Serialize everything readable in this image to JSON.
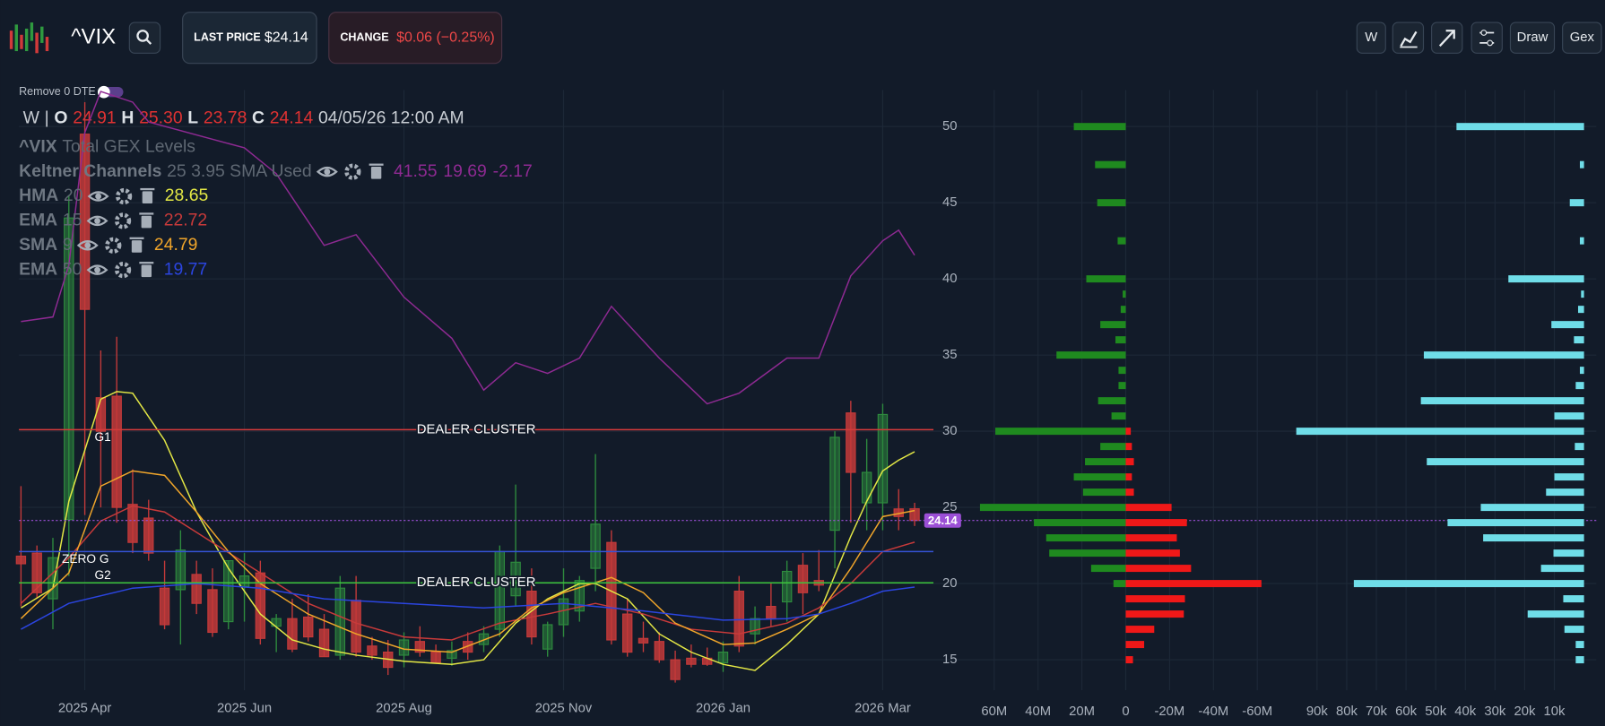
{
  "header": {
    "symbol": "^VIX",
    "last_price_label": "LAST PRICE",
    "last_price": "$24.14",
    "change_label": "CHANGE",
    "change": "$0.06 (−0.25%)",
    "buttons": [
      "W",
      "Draw",
      "Gex"
    ],
    "toggle_label": "Remove 0 DTE"
  },
  "ohlc": {
    "period": "W",
    "separator": "|",
    "open_label": "O",
    "open": "24.91",
    "high_label": "H",
    "high": "25.30",
    "low_label": "L",
    "low": "23.78",
    "close_label": "C",
    "close": "24.14",
    "datetime": "04/05/26 12:00 AM"
  },
  "indicators": [
    {
      "name": "^VIX",
      "label": "Total GEX Levels"
    },
    {
      "name": "Keltner Channels",
      "params": "25 3.95 SMA Used",
      "values": [
        41.55,
        19.69,
        -2.17
      ],
      "color": "#8e2a92"
    },
    {
      "name": "HMA",
      "params": "20",
      "values": [
        28.65
      ],
      "color": "#e4e845"
    },
    {
      "name": "EMA",
      "params": "15",
      "values": [
        22.72
      ],
      "color": "#c83a3a"
    },
    {
      "name": "SMA",
      "params": "9",
      "values": [
        24.79
      ],
      "color": "#f0a52a"
    },
    {
      "name": "EMA",
      "params": "50",
      "values": [
        19.77
      ],
      "color": "#2b45e0"
    }
  ],
  "chart_data": [
    {
      "type": "candlestick",
      "categories": [
        null,
        null,
        null,
        null,
        "2025 Apr",
        null,
        null,
        null,
        null,
        null,
        null,
        null,
        null,
        null,
        "2025 Jun",
        null,
        null,
        null,
        null,
        null,
        null,
        null,
        null,
        null,
        "2025 Aug",
        null,
        null,
        null,
        null,
        null,
        null,
        null,
        null,
        null,
        "2025 Nov",
        null,
        null,
        null,
        null,
        null,
        null,
        null,
        null,
        null,
        "2026 Jan",
        null,
        null,
        null,
        null,
        null,
        null,
        null,
        null,
        null,
        "2026 Mar",
        null,
        null
      ],
      "open": [
        21.8,
        22.0,
        19.0,
        24.2,
        49.5,
        32.2,
        32.3,
        25.2,
        24.3,
        19.7,
        19.6,
        20.6,
        19.6,
        17.5,
        19.8,
        20.7,
        17.2,
        17.7,
        17.8,
        17.0,
        15.3,
        18.9,
        15.9,
        15.5,
        15.3,
        16.2,
        15.5,
        15.1,
        16.2,
        16.0,
        17.0,
        19.2,
        19.5,
        15.7,
        17.3,
        18.2,
        21.0,
        22.7,
        18.0,
        16.4,
        16.2,
        15.0,
        15.1,
        15.1,
        14.8,
        19.5,
        16.7,
        18.5,
        18.8,
        21.2,
        20.2,
        23.5,
        31.2,
        25.3,
        25.3,
        24.9,
        24.91
      ],
      "high": [
        26.4,
        22.5,
        23.0,
        45.5,
        51.6,
        35.3,
        36.2,
        27.5,
        25.5,
        21.5,
        23.5,
        21.5,
        21.0,
        21.5,
        22.0,
        21.5,
        18.0,
        19.0,
        19.3,
        18.0,
        20.5,
        20.5,
        16.5,
        16.3,
        16.8,
        17.2,
        16.0,
        16.2,
        16.8,
        17.2,
        22.5,
        26.5,
        21.0,
        17.5,
        21.0,
        20.5,
        28.5,
        23.5,
        19.0,
        17.5,
        16.8,
        15.6,
        16.0,
        15.8,
        16.2,
        20.5,
        18.5,
        20.0,
        21.5,
        22.0,
        22.2,
        30.0,
        32.0,
        29.5,
        31.8,
        26.2,
        25.3
      ],
      "low": [
        18.5,
        19.0,
        17.0,
        20.5,
        24.5,
        25.0,
        24.0,
        22.0,
        21.5,
        17.0,
        16.0,
        18.0,
        16.5,
        17.0,
        17.5,
        16.0,
        15.5,
        15.5,
        16.2,
        15.2,
        15.0,
        15.2,
        15.0,
        14.0,
        14.5,
        15.2,
        14.8,
        14.6,
        15.0,
        15.5,
        16.5,
        18.5,
        16.0,
        15.2,
        16.5,
        17.5,
        19.5,
        16.0,
        15.2,
        15.5,
        14.8,
        13.5,
        14.5,
        14.6,
        14.2,
        15.5,
        16.0,
        17.2,
        17.5,
        18.0,
        19.5,
        21.0,
        24.0,
        23.5,
        23.5,
        23.5,
        23.78
      ],
      "close": [
        21.3,
        19.4,
        21.7,
        44.0,
        38.0,
        30.0,
        25.0,
        22.7,
        22.0,
        17.3,
        22.2,
        18.7,
        16.8,
        21.5,
        20.5,
        16.4,
        17.7,
        15.7,
        16.5,
        15.2,
        19.7,
        15.5,
        15.3,
        14.5,
        16.3,
        15.5,
        14.8,
        15.6,
        15.5,
        16.7,
        22.1,
        21.4,
        16.5,
        17.3,
        19.0,
        20.2,
        23.9,
        16.3,
        15.5,
        16.1,
        15.0,
        13.7,
        14.7,
        14.7,
        15.5,
        15.9,
        17.7,
        17.7,
        20.8,
        19.4,
        19.9,
        29.6,
        27.3,
        27.3,
        31.1,
        24.4,
        24.14
      ],
      "up_color": "#2e8b3e",
      "down_color": "#c43a3a",
      "ylim": [
        13,
        52.4
      ],
      "yticks": [
        15,
        20,
        25,
        30,
        35,
        40,
        45,
        50
      ],
      "grid": true,
      "lines": [
        {
          "color": "#8e2a92",
          "x": [
            0,
            2,
            3,
            4,
            5,
            7,
            8,
            14,
            16,
            19,
            21,
            24,
            27,
            29,
            31,
            33,
            35,
            37,
            40,
            43,
            45,
            48,
            50,
            52,
            54,
            55,
            56
          ],
          "values": [
            37.2,
            37.5,
            40.9,
            49.6,
            52.3,
            51.6,
            50.3,
            48.6,
            46.9,
            42.2,
            42.9,
            38.8,
            36.1,
            32.7,
            34.5,
            33.8,
            34.8,
            38.2,
            34.8,
            31.8,
            32.5,
            34.8,
            34.8,
            40.2,
            42.5,
            43.2,
            41.55
          ]
        },
        {
          "color": "#e4e845",
          "x": [
            0,
            2,
            3,
            5,
            6,
            7,
            9,
            11,
            13,
            15,
            17,
            19,
            21,
            24,
            27,
            29,
            31,
            33,
            35,
            36,
            38,
            40,
            42,
            44,
            46,
            48,
            50,
            52,
            53,
            54,
            55,
            56
          ],
          "values": [
            18.4,
            19.7,
            25.4,
            32.1,
            32.6,
            32.5,
            29.4,
            24.7,
            21.0,
            18.0,
            16.3,
            15.7,
            15.3,
            14.9,
            14.7,
            15.0,
            17.4,
            19.0,
            20.0,
            20.0,
            19.0,
            16.7,
            15.5,
            14.7,
            14.3,
            16.0,
            18.0,
            23.1,
            25.4,
            27.4,
            28.1,
            28.65
          ]
        },
        {
          "color": "#c83a3a",
          "x": [
            0,
            3,
            5,
            7,
            9,
            12,
            15,
            18,
            21,
            24,
            27,
            30,
            33,
            36,
            39,
            42,
            45,
            48,
            50,
            52,
            54,
            56
          ],
          "values": [
            18.7,
            21.7,
            24.1,
            25.1,
            24.7,
            22.7,
            20.7,
            18.7,
            17.4,
            16.5,
            16.3,
            17.4,
            18.0,
            18.7,
            18.0,
            17.0,
            16.7,
            17.4,
            18.4,
            20.0,
            22.1,
            22.72
          ]
        },
        {
          "color": "#f0a52a",
          "x": [
            0,
            3,
            5,
            7,
            9,
            11,
            13,
            15,
            18,
            21,
            24,
            27,
            30,
            32,
            34,
            37,
            39,
            41,
            44,
            46,
            48,
            50,
            52,
            54,
            56
          ],
          "values": [
            17.7,
            20.7,
            26.4,
            27.4,
            27.1,
            24.7,
            22.1,
            20.0,
            18.0,
            16.7,
            15.7,
            15.5,
            16.7,
            18.4,
            19.4,
            20.4,
            19.4,
            17.4,
            16.0,
            16.1,
            17.0,
            18.0,
            21.0,
            24.4,
            24.79
          ]
        },
        {
          "color": "#2b45e0",
          "x": [
            0,
            3,
            7,
            11,
            15,
            19,
            24,
            29,
            34,
            39,
            44,
            48,
            50,
            52,
            54,
            56
          ],
          "values": [
            17.0,
            18.7,
            19.7,
            20.0,
            19.7,
            19.0,
            18.7,
            18.4,
            18.7,
            18.2,
            17.6,
            17.7,
            18.0,
            18.7,
            19.5,
            19.77
          ]
        }
      ],
      "levels": [
        {
          "label": "DEALER CLUSTER",
          "tag": "G1",
          "value": 30.1,
          "color": "#d63a3a"
        },
        {
          "label": "ZERO G",
          "value": 22.1,
          "color": "#3553d6"
        },
        {
          "label": "DEALER CLUSTER",
          "tag": "G2",
          "value": 20.05,
          "color": "#3cc43c"
        }
      ],
      "last": 24.14,
      "last_color": "#9b4fd6"
    },
    {
      "type": "hbar",
      "categories": [
        50,
        47.5,
        45,
        42.5,
        40,
        39,
        38,
        37,
        36,
        35,
        34,
        33,
        32,
        31,
        30,
        29,
        28,
        27,
        26,
        25,
        24,
        23,
        22,
        21,
        20,
        19,
        18,
        17,
        16,
        15
      ],
      "series": [
        {
          "color": "#1f8a1f",
          "values": [
            23700000,
            14000000,
            13000000,
            3700000,
            18000000,
            1400000,
            2300000,
            11600000,
            4700000,
            31600000,
            3300000,
            3300000,
            12600000,
            6500000,
            59500000,
            11600000,
            18600000,
            23700000,
            19500000,
            66500000,
            41900000,
            36300000,
            34900000,
            15800000,
            5600000,
            null,
            null,
            null,
            null,
            null
          ]
        },
        {
          "color": "#f01818",
          "values": [
            null,
            null,
            null,
            null,
            null,
            null,
            null,
            null,
            null,
            null,
            null,
            null,
            null,
            null,
            -2300000,
            -2800000,
            -3700000,
            -2800000,
            -3700000,
            -20900000,
            -27900000,
            -23300000,
            -24700000,
            -29800000,
            -61900000,
            -27000000,
            -26500000,
            -13000000,
            -8400000,
            -3300000
          ]
        }
      ],
      "xlim": [
        70000000,
        -70000000
      ],
      "xticks": [
        {
          "value": 60000000,
          "label": "60M"
        },
        {
          "value": 40000000,
          "label": "40M"
        },
        {
          "value": 20000000,
          "label": "20M"
        },
        0,
        {
          "value": -20000000,
          "label": "-20M"
        },
        {
          "value": -40000000,
          "label": "-40M"
        },
        {
          "value": -60000000,
          "label": "-60M"
        }
      ]
    },
    {
      "type": "hbar",
      "categories": [
        50,
        47.5,
        45,
        42.5,
        40,
        39,
        38,
        37,
        36,
        35,
        34,
        33,
        32,
        31,
        30,
        29,
        28,
        27,
        26,
        25,
        24,
        23,
        22,
        21,
        20,
        19,
        18,
        17,
        16,
        15
      ],
      "series": [
        {
          "color": "#6fdde8",
          "values": [
            43000,
            1400,
            4800,
            1400,
            25500,
            1000,
            2000,
            11000,
            3400,
            54000,
            1400,
            2800,
            55000,
            10000,
            97000,
            3100,
            53000,
            10000,
            12800,
            34800,
            46000,
            34000,
            10300,
            14500,
            77600,
            7000,
            19000,
            6600,
            2800,
            2800
          ]
        }
      ],
      "xlim": [
        100000,
        0
      ],
      "xticks": [
        {
          "value": 90000,
          "label": "90k"
        },
        {
          "value": 80000,
          "label": "80k"
        },
        {
          "value": 70000,
          "label": "70k"
        },
        {
          "value": 60000,
          "label": "60k"
        },
        {
          "value": 50000,
          "label": "50k"
        },
        {
          "value": 40000,
          "label": "40k"
        },
        {
          "value": 30000,
          "label": "30k"
        },
        {
          "value": 20000,
          "label": "20k"
        },
        {
          "value": 10000,
          "label": "10k"
        }
      ]
    }
  ]
}
